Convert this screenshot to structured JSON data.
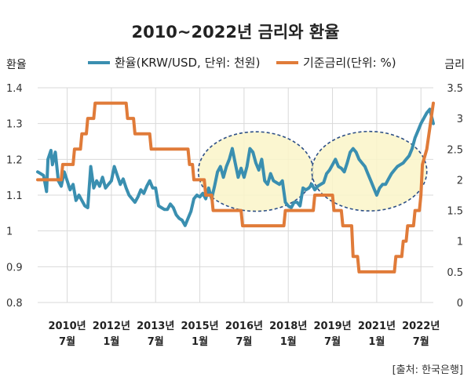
{
  "chart_data": {
    "type": "line",
    "title": "2010~2022년 금리와 환율",
    "yleft_label": "환율",
    "yright_label": "금리",
    "yleft_lim": [
      0.8,
      1.4
    ],
    "yright_lim": [
      0,
      3.5
    ],
    "yleft_ticks": [
      "0.8",
      "0.9",
      "1",
      "1.1",
      "1.2",
      "1.3",
      "1.4"
    ],
    "yright_ticks": [
      "0",
      "0.5",
      "1",
      "1.5",
      "2",
      "2.5",
      "3",
      "3.5"
    ],
    "x_range": [
      2009.5,
      2022.92
    ],
    "x_ticks": [
      {
        "x": 2010.5,
        "line1": "2010년",
        "line2": "7월"
      },
      {
        "x": 2012.0,
        "line1": "2012년",
        "line2": "1월"
      },
      {
        "x": 2013.5,
        "line1": "2013년",
        "line2": "7월"
      },
      {
        "x": 2015.0,
        "line1": "2015년",
        "line2": "1월"
      },
      {
        "x": 2016.5,
        "line1": "2016년",
        "line2": "7월"
      },
      {
        "x": 2018.0,
        "line1": "2018년",
        "line2": "1월"
      },
      {
        "x": 2019.5,
        "line1": "2019년",
        "line2": "7월"
      },
      {
        "x": 2021.0,
        "line1": "2021년",
        "line2": "1월"
      },
      {
        "x": 2022.5,
        "line1": "2022년",
        "line2": "7월"
      }
    ],
    "grid": true,
    "legend_position": "top",
    "series": [
      {
        "name": "환율(KRW/USD, 단위: 천원)",
        "axis": "left",
        "color": "#3a8fb0",
        "points": [
          [
            2009.5,
            1.165
          ],
          [
            2009.6,
            1.16
          ],
          [
            2009.7,
            1.155
          ],
          [
            2009.8,
            1.11
          ],
          [
            2009.85,
            1.2
          ],
          [
            2009.95,
            1.225
          ],
          [
            2010.0,
            1.185
          ],
          [
            2010.1,
            1.22
          ],
          [
            2010.2,
            1.14
          ],
          [
            2010.3,
            1.125
          ],
          [
            2010.4,
            1.165
          ],
          [
            2010.5,
            1.14
          ],
          [
            2010.6,
            1.115
          ],
          [
            2010.7,
            1.13
          ],
          [
            2010.8,
            1.085
          ],
          [
            2010.9,
            1.1
          ],
          [
            2011.0,
            1.085
          ],
          [
            2011.1,
            1.07
          ],
          [
            2011.2,
            1.065
          ],
          [
            2011.3,
            1.18
          ],
          [
            2011.4,
            1.12
          ],
          [
            2011.5,
            1.14
          ],
          [
            2011.6,
            1.125
          ],
          [
            2011.7,
            1.15
          ],
          [
            2011.8,
            1.12
          ],
          [
            2011.9,
            1.13
          ],
          [
            2012.0,
            1.14
          ],
          [
            2012.1,
            1.18
          ],
          [
            2012.2,
            1.155
          ],
          [
            2012.3,
            1.13
          ],
          [
            2012.4,
            1.145
          ],
          [
            2012.5,
            1.12
          ],
          [
            2012.6,
            1.1
          ],
          [
            2012.7,
            1.09
          ],
          [
            2012.8,
            1.08
          ],
          [
            2012.9,
            1.095
          ],
          [
            2013.0,
            1.115
          ],
          [
            2013.1,
            1.105
          ],
          [
            2013.2,
            1.125
          ],
          [
            2013.3,
            1.14
          ],
          [
            2013.4,
            1.12
          ],
          [
            2013.5,
            1.12
          ],
          [
            2013.6,
            1.07
          ],
          [
            2013.7,
            1.065
          ],
          [
            2013.8,
            1.06
          ],
          [
            2013.9,
            1.06
          ],
          [
            2014.0,
            1.075
          ],
          [
            2014.1,
            1.065
          ],
          [
            2014.2,
            1.045
          ],
          [
            2014.3,
            1.035
          ],
          [
            2014.4,
            1.03
          ],
          [
            2014.5,
            1.015
          ],
          [
            2014.6,
            1.035
          ],
          [
            2014.7,
            1.055
          ],
          [
            2014.8,
            1.09
          ],
          [
            2014.9,
            1.1
          ],
          [
            2015.0,
            1.095
          ],
          [
            2015.1,
            1.105
          ],
          [
            2015.2,
            1.09
          ],
          [
            2015.3,
            1.12
          ],
          [
            2015.4,
            1.09
          ],
          [
            2015.5,
            1.125
          ],
          [
            2015.6,
            1.165
          ],
          [
            2015.7,
            1.18
          ],
          [
            2015.8,
            1.15
          ],
          [
            2015.9,
            1.18
          ],
          [
            2016.0,
            1.2
          ],
          [
            2016.1,
            1.23
          ],
          [
            2016.2,
            1.19
          ],
          [
            2016.3,
            1.15
          ],
          [
            2016.4,
            1.175
          ],
          [
            2016.5,
            1.15
          ],
          [
            2016.6,
            1.18
          ],
          [
            2016.7,
            1.23
          ],
          [
            2016.8,
            1.22
          ],
          [
            2016.9,
            1.19
          ],
          [
            2017.0,
            1.17
          ],
          [
            2017.1,
            1.2
          ],
          [
            2017.2,
            1.14
          ],
          [
            2017.3,
            1.13
          ],
          [
            2017.4,
            1.16
          ],
          [
            2017.5,
            1.14
          ],
          [
            2017.6,
            1.135
          ],
          [
            2017.7,
            1.13
          ],
          [
            2017.8,
            1.14
          ],
          [
            2017.9,
            1.08
          ],
          [
            2018.0,
            1.07
          ],
          [
            2018.1,
            1.065
          ],
          [
            2018.2,
            1.08
          ],
          [
            2018.3,
            1.08
          ],
          [
            2018.4,
            1.07
          ],
          [
            2018.5,
            1.12
          ],
          [
            2018.6,
            1.115
          ],
          [
            2018.7,
            1.12
          ],
          [
            2018.8,
            1.13
          ],
          [
            2018.9,
            1.115
          ],
          [
            2019.0,
            1.125
          ],
          [
            2019.1,
            1.13
          ],
          [
            2019.2,
            1.135
          ],
          [
            2019.3,
            1.16
          ],
          [
            2019.4,
            1.17
          ],
          [
            2019.5,
            1.185
          ],
          [
            2019.6,
            1.2
          ],
          [
            2019.7,
            1.18
          ],
          [
            2019.8,
            1.175
          ],
          [
            2019.9,
            1.165
          ],
          [
            2020.0,
            1.19
          ],
          [
            2020.1,
            1.22
          ],
          [
            2020.2,
            1.23
          ],
          [
            2020.3,
            1.22
          ],
          [
            2020.4,
            1.2
          ],
          [
            2020.5,
            1.19
          ],
          [
            2020.6,
            1.18
          ],
          [
            2020.7,
            1.16
          ],
          [
            2020.8,
            1.14
          ],
          [
            2020.9,
            1.12
          ],
          [
            2021.0,
            1.1
          ],
          [
            2021.1,
            1.12
          ],
          [
            2021.2,
            1.13
          ],
          [
            2021.3,
            1.13
          ],
          [
            2021.4,
            1.145
          ],
          [
            2021.5,
            1.16
          ],
          [
            2021.6,
            1.17
          ],
          [
            2021.7,
            1.18
          ],
          [
            2021.8,
            1.185
          ],
          [
            2021.9,
            1.19
          ],
          [
            2022.0,
            1.2
          ],
          [
            2022.1,
            1.21
          ],
          [
            2022.2,
            1.23
          ],
          [
            2022.3,
            1.26
          ],
          [
            2022.4,
            1.28
          ],
          [
            2022.5,
            1.3
          ],
          [
            2022.7,
            1.33
          ],
          [
            2022.8,
            1.34
          ],
          [
            2022.92,
            1.3
          ]
        ]
      },
      {
        "name": "기준금리(단위: %)",
        "axis": "right",
        "color": "#e07b39",
        "points": [
          [
            2009.5,
            2.0
          ],
          [
            2010.3,
            2.0
          ],
          [
            2010.35,
            2.25
          ],
          [
            2010.7,
            2.25
          ],
          [
            2010.75,
            2.5
          ],
          [
            2010.95,
            2.5
          ],
          [
            2011.0,
            2.75
          ],
          [
            2011.15,
            2.75
          ],
          [
            2011.2,
            3.0
          ],
          [
            2011.4,
            3.0
          ],
          [
            2011.45,
            3.25
          ],
          [
            2012.5,
            3.25
          ],
          [
            2012.55,
            3.0
          ],
          [
            2012.75,
            3.0
          ],
          [
            2012.8,
            2.75
          ],
          [
            2013.3,
            2.75
          ],
          [
            2013.35,
            2.5
          ],
          [
            2014.6,
            2.5
          ],
          [
            2014.65,
            2.25
          ],
          [
            2014.75,
            2.25
          ],
          [
            2014.8,
            2.0
          ],
          [
            2015.15,
            2.0
          ],
          [
            2015.2,
            1.75
          ],
          [
            2015.4,
            1.75
          ],
          [
            2015.45,
            1.5
          ],
          [
            2016.4,
            1.5
          ],
          [
            2016.45,
            1.25
          ],
          [
            2017.85,
            1.25
          ],
          [
            2017.9,
            1.5
          ],
          [
            2018.85,
            1.5
          ],
          [
            2018.9,
            1.75
          ],
          [
            2019.5,
            1.75
          ],
          [
            2019.55,
            1.5
          ],
          [
            2019.8,
            1.5
          ],
          [
            2019.85,
            1.25
          ],
          [
            2020.15,
            1.25
          ],
          [
            2020.2,
            0.75
          ],
          [
            2020.35,
            0.75
          ],
          [
            2020.4,
            0.5
          ],
          [
            2021.6,
            0.5
          ],
          [
            2021.65,
            0.75
          ],
          [
            2021.85,
            0.75
          ],
          [
            2021.9,
            1.0
          ],
          [
            2022.0,
            1.0
          ],
          [
            2022.05,
            1.25
          ],
          [
            2022.25,
            1.25
          ],
          [
            2022.3,
            1.5
          ],
          [
            2022.45,
            1.5
          ],
          [
            2022.5,
            1.75
          ],
          [
            2022.55,
            2.25
          ],
          [
            2022.7,
            2.5
          ],
          [
            2022.92,
            3.25
          ]
        ]
      }
    ],
    "highlights": [
      {
        "x_center": 2016.9,
        "y_center": 1.166,
        "rx": 1.95,
        "ry": 0.111
      },
      {
        "x_center": 2020.75,
        "y_center": 1.167,
        "rx": 1.95,
        "ry": 0.111
      }
    ]
  },
  "source": "[출처: 한국은행]"
}
